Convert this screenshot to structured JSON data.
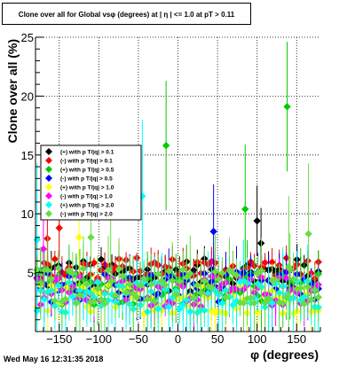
{
  "title": "Clone  over all for Global vsφ (degrees) at | η | <= 1.0 at pT > 0.11",
  "timestamp": "Wed May 16 12:31:35 2018",
  "chart_data": {
    "type": "scatter",
    "title": "Clone  over all for Global vsφ (degrees) at | η | <= 1.0 at pT > 0.11",
    "xlabel": "φ (degrees)",
    "ylabel": "Clone  over all (%)",
    "xlim": [
      -180,
      180
    ],
    "ylim": [
      0,
      25
    ],
    "xticks": [
      -150,
      -100,
      -50,
      0,
      50,
      100,
      150
    ],
    "xtick_labels": [
      "−150",
      "−100",
      "−50",
      "0",
      "50",
      "100",
      "150"
    ],
    "yticks": [
      5,
      10,
      15,
      20,
      25
    ],
    "ytick_labels": [
      "5",
      "10",
      "15",
      "20",
      "25"
    ],
    "grid": true,
    "legend_position": "left",
    "series": [
      {
        "name": "(+) with p T/|q| > 0.1",
        "color": "#000000",
        "base": 4.8,
        "amp": 1.4,
        "err": 1.2,
        "spikes": [
          [
            100,
            9.4
          ],
          [
            105,
            7.5
          ]
        ]
      },
      {
        "name": "(-) with p T/|q| > 0.1",
        "color": "#ff0000",
        "base": 5.3,
        "amp": 1.0,
        "err": 1.0,
        "spikes": [
          [
            -150,
            8.8
          ],
          [
            -165,
            7.9
          ]
        ]
      },
      {
        "name": "(+) with p T/|q| > 0.5",
        "color": "#00cc00",
        "base": 3.6,
        "amp": 1.4,
        "err": 2.2,
        "spikes": [
          [
            138,
            19.1
          ],
          [
            -15,
            15.8
          ],
          [
            85,
            10.4
          ]
        ]
      },
      {
        "name": "(-) with p T/|q| > 0.5",
        "color": "#0000ff",
        "base": 3.8,
        "amp": 1.3,
        "err": 1.6,
        "spikes": [
          [
            45,
            8.5
          ]
        ]
      },
      {
        "name": "(+) with p T/|q| > 1.0",
        "color": "#ffff00",
        "base": 2.8,
        "amp": 1.3,
        "err": 1.8,
        "spikes": [
          [
            -125,
            8.0
          ]
        ]
      },
      {
        "name": "(-) with p T/|q| > 1.0",
        "color": "#ff00ff",
        "base": 3.4,
        "amp": 1.3,
        "err": 1.6,
        "spikes": [
          [
            -170,
            7.0
          ]
        ]
      },
      {
        "name": "(+) with p T/|q| > 2.0",
        "color": "#00ffff",
        "base": 3.0,
        "amp": 1.4,
        "err": 2.6,
        "spikes": [
          [
            -45,
            11.5
          ],
          [
            -178,
            7.8
          ]
        ]
      },
      {
        "name": "(-) with p T/|q| > 2.0",
        "color": "#66dd44",
        "base": 3.9,
        "amp": 1.6,
        "err": 2.4,
        "spikes": [
          [
            -110,
            8.0
          ],
          [
            -85,
            9.8
          ],
          [
            140,
            5.5
          ],
          [
            165,
            8.3
          ]
        ]
      }
    ]
  }
}
